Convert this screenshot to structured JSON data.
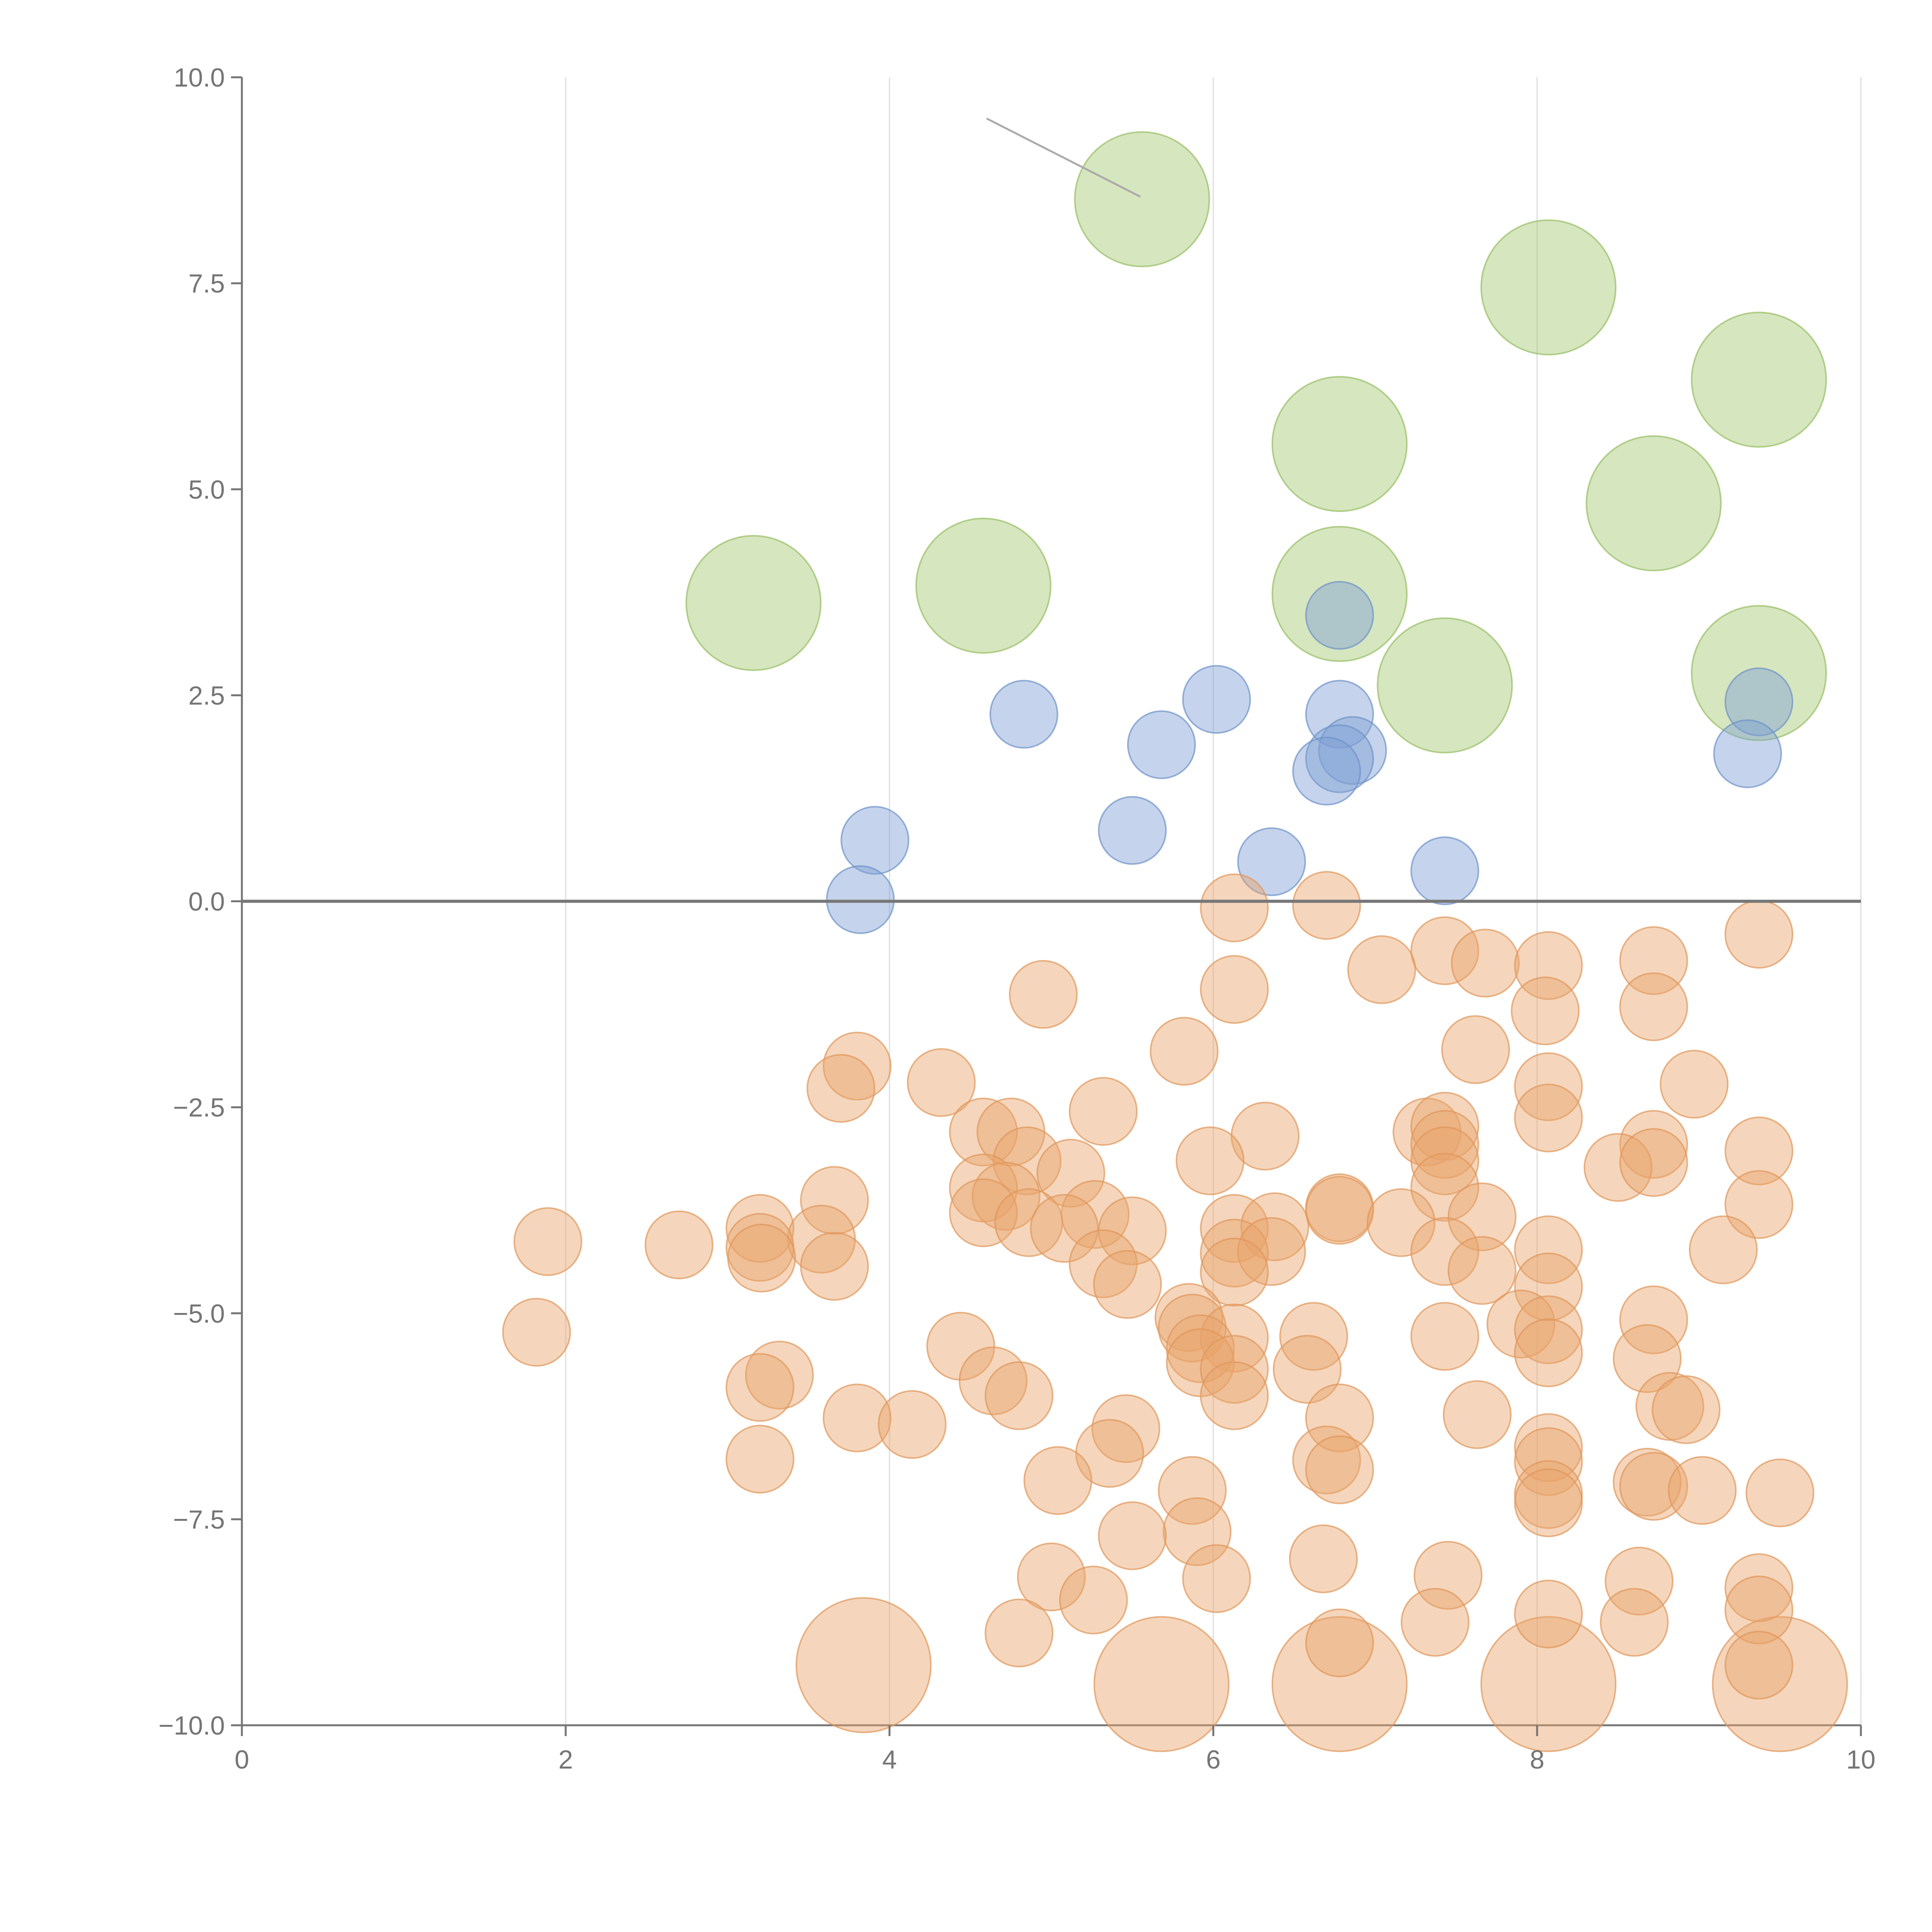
{
  "chart_data": {
    "type": "scatter",
    "title": "",
    "xlabel": "",
    "ylabel": "",
    "xlim": [
      0,
      10
    ],
    "ylim": [
      -10,
      10
    ],
    "grid": "vertical",
    "legend": "none",
    "x_ticks": [
      {
        "value": 0,
        "label": "0"
      },
      {
        "value": 2,
        "label": "2"
      },
      {
        "value": 4,
        "label": "4"
      },
      {
        "value": 6,
        "label": "6"
      },
      {
        "value": 8,
        "label": "8"
      },
      {
        "value": 10,
        "label": "10"
      }
    ],
    "y_ticks": [
      {
        "value": 10,
        "label": "10.0"
      },
      {
        "value": 7.5,
        "label": "7.5"
      },
      {
        "value": 5,
        "label": "5.0"
      },
      {
        "value": 2.5,
        "label": "2.5"
      },
      {
        "value": 0,
        "label": "0.0"
      },
      {
        "value": -2.5,
        "label": "−2.5"
      },
      {
        "value": -5,
        "label": "−5.0"
      },
      {
        "value": -7.5,
        "label": "−7.5"
      },
      {
        "value": -10,
        "label": "−10.0"
      }
    ],
    "reference_line": {
      "y": 0,
      "color": "#777777"
    },
    "leader_line": {
      "from": [
        4.6,
        9.5
      ],
      "to": [
        5.55,
        8.55
      ]
    },
    "series": [
      {
        "name": "green",
        "color": "#a3c870",
        "stroke": "#96bd62",
        "size": 3,
        "points": [
          [
            5.56,
            8.52
          ],
          [
            8.07,
            7.45
          ],
          [
            9.37,
            6.33
          ],
          [
            6.78,
            5.55
          ],
          [
            8.72,
            4.83
          ],
          [
            3.16,
            3.62
          ],
          [
            4.58,
            3.83
          ],
          [
            6.78,
            3.73
          ],
          [
            7.43,
            2.62
          ],
          [
            9.37,
            2.77
          ]
        ]
      },
      {
        "name": "blue",
        "color": "#7ea0d4",
        "stroke": "#6e91c8",
        "size": 1.5,
        "points": [
          [
            6.78,
            3.47
          ],
          [
            6.02,
            2.45
          ],
          [
            4.83,
            2.27
          ],
          [
            6.78,
            2.27
          ],
          [
            9.37,
            2.42
          ],
          [
            5.68,
            1.9
          ],
          [
            6.86,
            1.83
          ],
          [
            6.78,
            1.73
          ],
          [
            6.7,
            1.58
          ],
          [
            9.3,
            1.79
          ],
          [
            3.91,
            0.74
          ],
          [
            5.5,
            0.86
          ],
          [
            6.36,
            0.48
          ],
          [
            7.43,
            0.37
          ],
          [
            3.82,
            0.02
          ]
        ]
      },
      {
        "name": "orange-large",
        "color": "#e8a36a",
        "stroke": "#df955a",
        "size": 3,
        "points": [
          [
            3.84,
            -9.27
          ],
          [
            5.68,
            -9.5
          ],
          [
            6.78,
            -9.5
          ],
          [
            8.07,
            -9.5
          ],
          [
            9.5,
            -9.5
          ]
        ]
      },
      {
        "name": "orange",
        "color": "#e8a36a",
        "stroke": "#df955a",
        "size": 1.5,
        "points": [
          [
            6.13,
            -0.08
          ],
          [
            6.7,
            -0.05
          ],
          [
            9.37,
            -0.4
          ],
          [
            7.43,
            -0.6
          ],
          [
            7.04,
            -0.83
          ],
          [
            7.68,
            -0.75
          ],
          [
            8.07,
            -0.78
          ],
          [
            8.72,
            -0.72
          ],
          [
            4.95,
            -1.13
          ],
          [
            6.13,
            -1.07
          ],
          [
            8.05,
            -1.33
          ],
          [
            8.72,
            -1.28
          ],
          [
            5.82,
            -1.82
          ],
          [
            7.62,
            -1.8
          ],
          [
            3.8,
            -2.0
          ],
          [
            3.7,
            -2.27
          ],
          [
            4.32,
            -2.2
          ],
          [
            8.07,
            -2.25
          ],
          [
            8.97,
            -2.22
          ],
          [
            5.32,
            -2.55
          ],
          [
            8.07,
            -2.63
          ],
          [
            4.58,
            -2.8
          ],
          [
            4.75,
            -2.8
          ],
          [
            6.32,
            -2.85
          ],
          [
            7.32,
            -2.8
          ],
          [
            7.43,
            -2.73
          ],
          [
            7.43,
            -2.95
          ],
          [
            8.72,
            -2.95
          ],
          [
            9.37,
            -3.03
          ],
          [
            4.85,
            -3.15
          ],
          [
            5.98,
            -3.15
          ],
          [
            7.43,
            -3.15
          ],
          [
            8.5,
            -3.23
          ],
          [
            8.72,
            -3.17
          ],
          [
            5.12,
            -3.3
          ],
          [
            4.58,
            -3.48
          ],
          [
            4.72,
            -3.58
          ],
          [
            7.43,
            -3.47
          ],
          [
            3.66,
            -3.63
          ],
          [
            9.37,
            -3.68
          ],
          [
            6.78,
            -3.72
          ],
          [
            6.78,
            -3.75
          ],
          [
            4.58,
            -3.78
          ],
          [
            5.27,
            -3.8
          ],
          [
            7.66,
            -3.83
          ],
          [
            4.86,
            -3.9
          ],
          [
            6.13,
            -3.97
          ],
          [
            6.38,
            -3.95
          ],
          [
            7.16,
            -3.9
          ],
          [
            3.2,
            -3.97
          ],
          [
            1.89,
            -4.13
          ],
          [
            2.7,
            -4.17
          ],
          [
            3.58,
            -4.1
          ],
          [
            5.08,
            -3.97
          ],
          [
            5.5,
            -4.0
          ],
          [
            3.2,
            -4.2
          ],
          [
            8.07,
            -4.23
          ],
          [
            9.15,
            -4.23
          ],
          [
            3.21,
            -4.33
          ],
          [
            6.13,
            -4.27
          ],
          [
            6.36,
            -4.25
          ],
          [
            7.43,
            -4.25
          ],
          [
            3.66,
            -4.43
          ],
          [
            5.32,
            -4.4
          ],
          [
            6.13,
            -4.5
          ],
          [
            7.66,
            -4.48
          ],
          [
            5.47,
            -4.65
          ],
          [
            8.07,
            -4.68
          ],
          [
            5.85,
            -5.05
          ],
          [
            7.9,
            -5.13
          ],
          [
            8.72,
            -5.08
          ],
          [
            5.87,
            -5.18
          ],
          [
            8.07,
            -5.2
          ],
          [
            1.82,
            -5.23
          ],
          [
            6.13,
            -5.3
          ],
          [
            6.62,
            -5.28
          ],
          [
            7.43,
            -5.28
          ],
          [
            5.92,
            -5.43
          ],
          [
            8.07,
            -5.48
          ],
          [
            4.44,
            -5.4
          ],
          [
            5.92,
            -5.6
          ],
          [
            8.68,
            -5.55
          ],
          [
            6.58,
            -5.68
          ],
          [
            6.13,
            -5.68
          ],
          [
            3.32,
            -5.75
          ],
          [
            4.64,
            -5.82
          ],
          [
            3.2,
            -5.9
          ],
          [
            4.8,
            -6.0
          ],
          [
            6.13,
            -6.0
          ],
          [
            8.82,
            -6.13
          ],
          [
            8.92,
            -6.17
          ],
          [
            3.8,
            -6.27
          ],
          [
            4.14,
            -6.35
          ],
          [
            6.78,
            -6.27
          ],
          [
            7.63,
            -6.23
          ],
          [
            5.46,
            -6.4
          ],
          [
            8.07,
            -6.63
          ],
          [
            5.36,
            -6.7
          ],
          [
            3.2,
            -6.77
          ],
          [
            6.7,
            -6.78
          ],
          [
            8.07,
            -6.8
          ],
          [
            6.78,
            -6.9
          ],
          [
            5.04,
            -7.03
          ],
          [
            8.68,
            -7.05
          ],
          [
            8.72,
            -7.1
          ],
          [
            9.02,
            -7.15
          ],
          [
            5.87,
            -7.15
          ],
          [
            9.5,
            -7.18
          ],
          [
            8.07,
            -7.2
          ],
          [
            8.07,
            -7.3
          ],
          [
            5.9,
            -7.65
          ],
          [
            5.5,
            -7.7
          ],
          [
            6.68,
            -7.98
          ],
          [
            5.0,
            -8.2
          ],
          [
            6.02,
            -8.22
          ],
          [
            7.45,
            -8.18
          ],
          [
            8.63,
            -8.25
          ],
          [
            9.37,
            -8.33
          ],
          [
            5.26,
            -8.48
          ],
          [
            9.37,
            -8.6
          ],
          [
            8.07,
            -8.65
          ],
          [
            4.8,
            -8.88
          ],
          [
            7.37,
            -8.75
          ],
          [
            8.6,
            -8.75
          ],
          [
            6.78,
            -9.0
          ],
          [
            9.37,
            -9.27
          ]
        ]
      }
    ]
  }
}
